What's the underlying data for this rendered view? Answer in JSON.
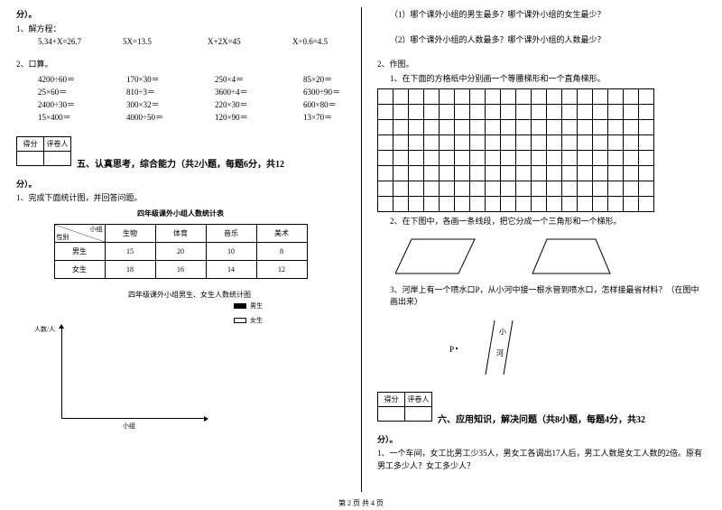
{
  "left": {
    "fen1": "分）。",
    "q1": "1、解方程：",
    "eqs": [
      "5.34+X=26.7",
      "5X=13.5",
      "X+2X=45",
      "X÷0.6=4.5"
    ],
    "q2": "2、口算。",
    "calc": [
      [
        "4200÷60＝",
        "170×30＝",
        "250×4＝",
        "85×20＝"
      ],
      [
        "25×60＝",
        "810÷3＝",
        "3600÷4＝",
        "6300÷90＝"
      ],
      [
        "2400÷30＝",
        "300×32＝",
        "220×30＝",
        "600×80＝"
      ],
      [
        "15×400＝",
        "4000÷50＝",
        "120×90＝",
        "13×70＝"
      ]
    ],
    "score_h1": "得分",
    "score_h2": "评卷人",
    "section5": "五、认真思考，综合能力（共2小题，每题6分，共12",
    "fen2": "分）。",
    "q5_1": "1、完成下面统计图，并回答问题。",
    "stat_title": "四年级课外小组人数统计表",
    "stat_diag1": "小组",
    "stat_diag2": "性别",
    "stat_cols": [
      "生物",
      "体育",
      "音乐",
      "美术"
    ],
    "stat_r1": "男生",
    "stat_r1v": [
      "15",
      "20",
      "10",
      "8"
    ],
    "stat_r2": "女生",
    "stat_r2v": [
      "18",
      "16",
      "14",
      "12"
    ],
    "chart_title": "四年级课外小组男生、女生人数统计图",
    "legend1": "男生",
    "legend2": "女生",
    "axis_y": "人数/人",
    "axis_x": "小组"
  },
  "right": {
    "q1": "（1）哪个课外小组的男生最多？哪个课外小组的女生最少？",
    "q2": "（2）哪个课外小组的人数最多？哪个课外小组的人数最少？",
    "draw": "2、作图。",
    "d1": "1、在下面的方格纸中分别画一个等腰梯形和一个直角梯形。",
    "d2": "2、在下图中，各画一条线段，把它分成一个三角形和一个梯形。",
    "d3": "3、河岸上有一个喷水口P，从小河中接一根水管到喷水口，怎样接最省材料？（在图中画出来）",
    "river1": "小",
    "river2": "河",
    "p": "P",
    "score_h1": "得分",
    "score_h2": "评卷人",
    "section6": "六、应用知识，解决问题（共8小题，每题4分，共32",
    "fen": "分）。",
    "app1": "1、一个车间，女工比男工少35人，男女工各调出17人后，男工人数是女工人数的2倍。原有男工多少人？女工多少人？"
  },
  "footer": "第 2 页 共 4 页"
}
